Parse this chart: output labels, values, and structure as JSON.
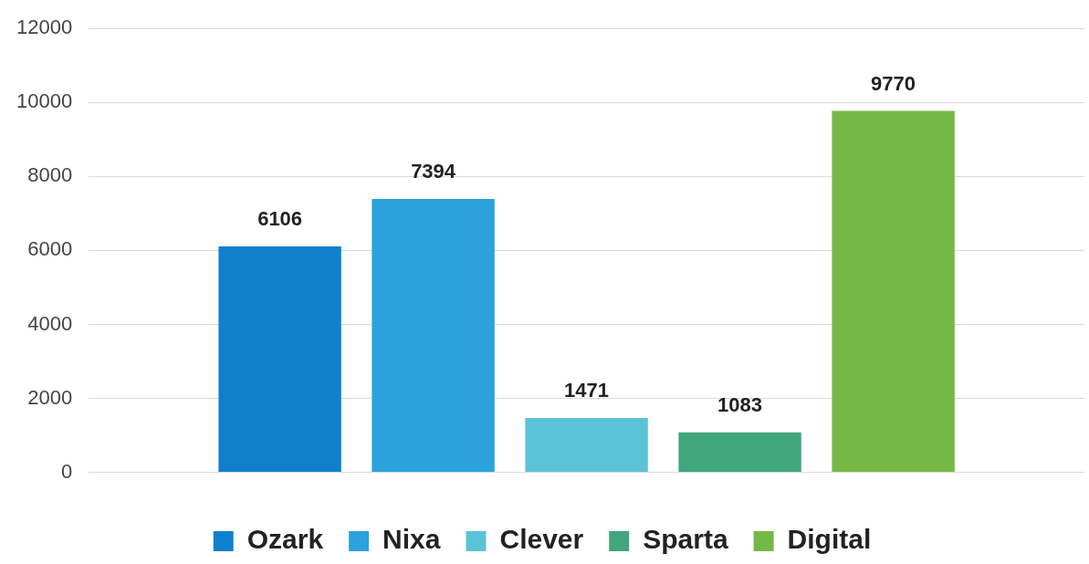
{
  "chart_data": {
    "type": "bar",
    "categories": [
      null
    ],
    "series": [
      {
        "name": "Ozark",
        "color": "#1080cc",
        "values": [
          6106
        ]
      },
      {
        "name": "Nixa",
        "color": "#2ba2db",
        "values": [
          7394
        ]
      },
      {
        "name": "Clever",
        "color": "#5cc2d6",
        "values": [
          1471
        ]
      },
      {
        "name": "Sparta",
        "color": "#41a67c",
        "values": [
          1083
        ]
      },
      {
        "name": "Digital",
        "color": "#74b845",
        "values": [
          9770
        ]
      }
    ],
    "ylim": [
      0,
      12000
    ],
    "yticks": [
      0,
      2000,
      4000,
      6000,
      8000,
      10000,
      12000
    ],
    "grid": "y",
    "legend": "bottom",
    "data_labels": true
  }
}
